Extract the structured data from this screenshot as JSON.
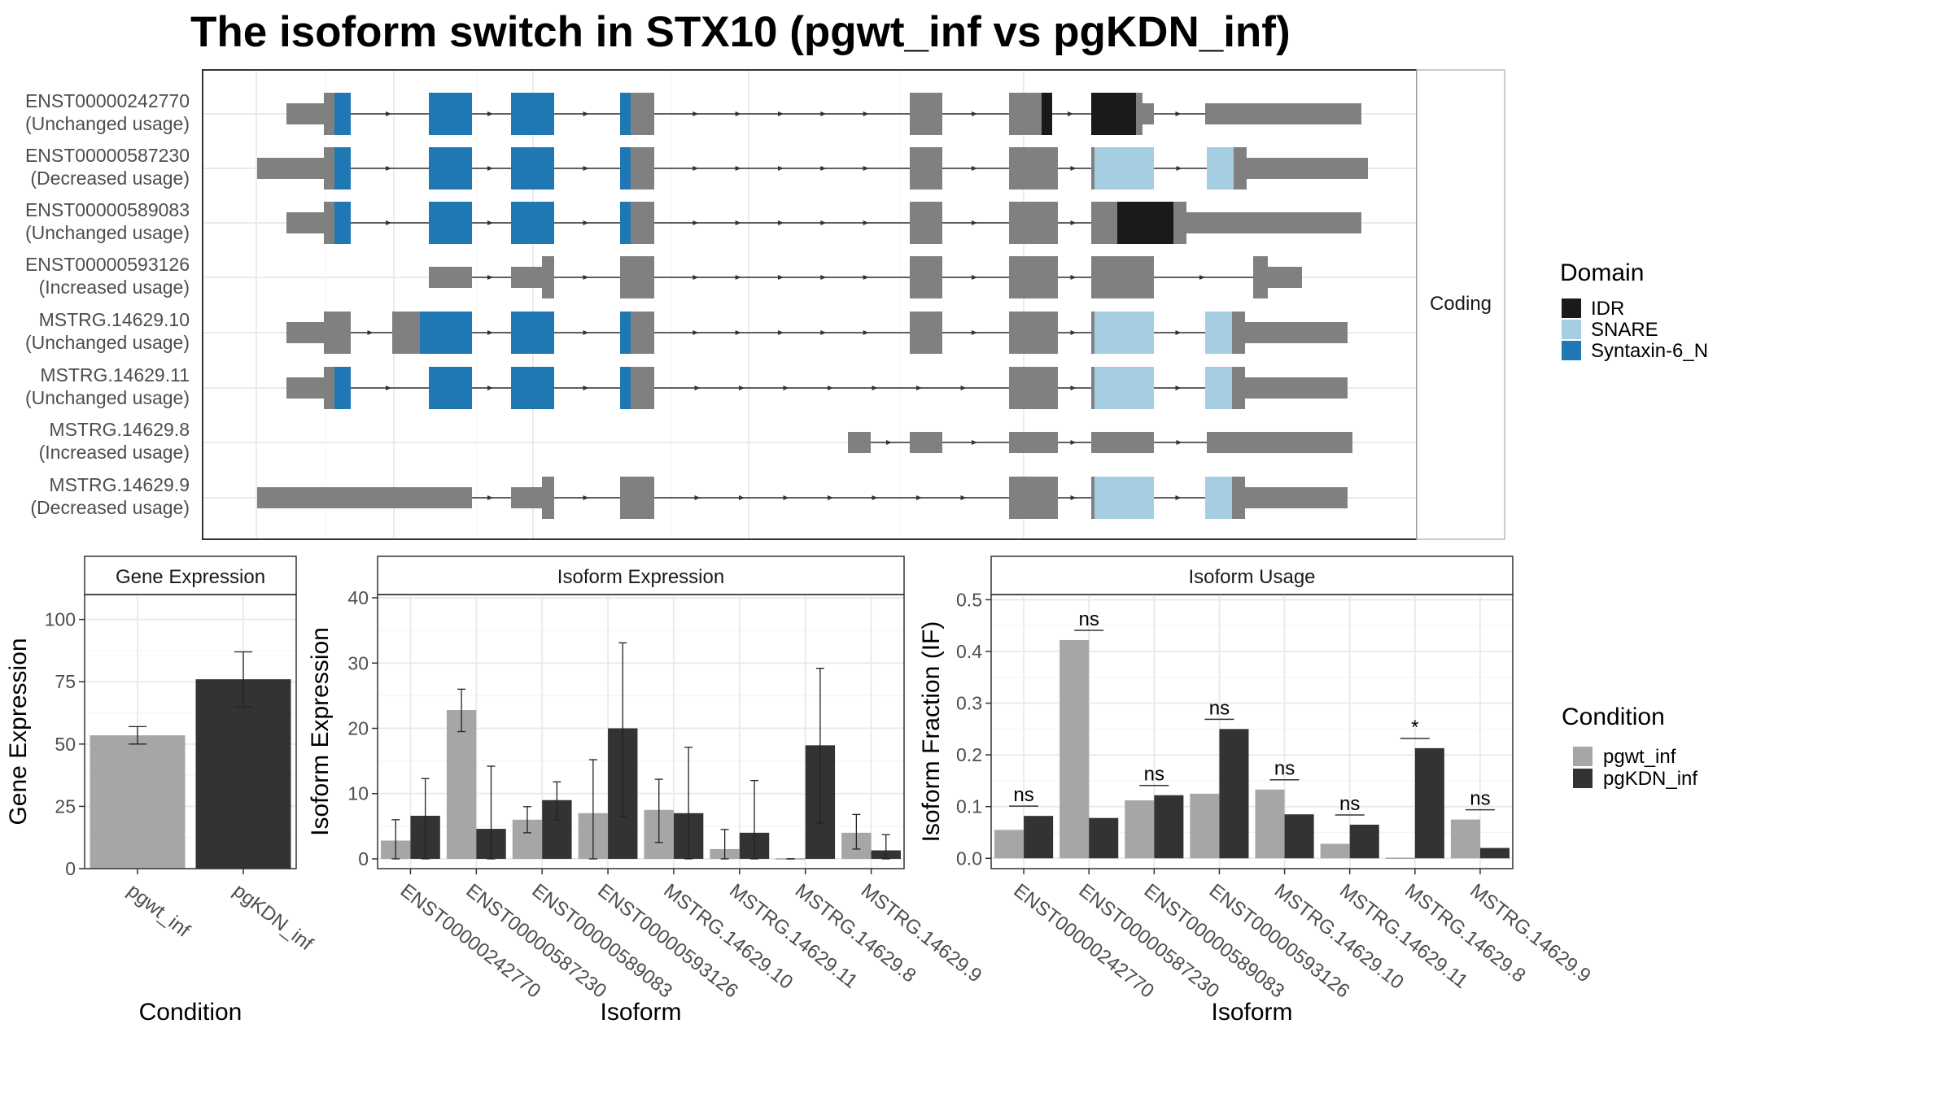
{
  "title": "The isoform switch in STX10 (pgwt_inf vs pgKDN_inf)",
  "colors": {
    "intron_grey": "#808080",
    "IDR": "#1a1a1a",
    "SNARE": "#a6cee3",
    "Syntaxin-6_N": "#1f78b4",
    "pgwt_inf": "#a6a6a6",
    "pgKDN_inf": "#333333"
  },
  "structure": {
    "facet_label": "Coding",
    "legend": {
      "title": "Domain",
      "items": [
        {
          "name": "IDR",
          "color_key": "IDR"
        },
        {
          "name": "SNARE",
          "color_key": "SNARE"
        },
        {
          "name": "Syntaxin-6_N",
          "color_key": "Syntaxin-6_N"
        }
      ]
    },
    "isoforms": [
      {
        "id": "ENST00000242770",
        "usage": "(Unchanged usage)"
      },
      {
        "id": "ENST00000587230",
        "usage": "(Decreased usage)"
      },
      {
        "id": "ENST00000589083",
        "usage": "(Unchanged usage)"
      },
      {
        "id": "ENST00000593126",
        "usage": "(Increased usage)"
      },
      {
        "id": "MSTRG.14629.10",
        "usage": "(Unchanged usage)"
      },
      {
        "id": "MSTRG.14629.11",
        "usage": "(Unchanged usage)"
      },
      {
        "id": "MSTRG.14629.8",
        "usage": "(Increased usage)"
      },
      {
        "id": "MSTRG.14629.9",
        "usage": "(Decreased usage)"
      }
    ]
  },
  "chart_data": [
    {
      "type": "bar",
      "panel_title": "Gene Expression",
      "categories": [
        "pgwt_inf",
        "pgKDN_inf"
      ],
      "values": [
        53.5,
        76
      ],
      "error_low": [
        50,
        65
      ],
      "error_high": [
        57,
        87
      ],
      "xlabel": "Condition",
      "ylabel": "Gene Expression",
      "ylim": [
        0,
        110
      ],
      "yticks": [
        0,
        25,
        50,
        75,
        100
      ],
      "grid": true
    },
    {
      "type": "bar",
      "panel_title": "Isoform Expression",
      "categories": [
        "ENST00000242770",
        "ENST00000587230",
        "ENST00000589083",
        "ENST00000593126",
        "MSTRG.14629.10",
        "MSTRG.14629.11",
        "MSTRG.14629.8",
        "MSTRG.14629.9"
      ],
      "series": [
        {
          "name": "pgwt_inf",
          "values": [
            2.8,
            22.8,
            6,
            7,
            7.5,
            1.5,
            0,
            4
          ],
          "error_low": [
            0,
            19.5,
            4,
            0,
            2.5,
            0,
            0,
            1.5
          ],
          "error_high": [
            6,
            26,
            8,
            15.2,
            12.2,
            4.5,
            0,
            6.8
          ]
        },
        {
          "name": "pgKDN_inf",
          "values": [
            6.6,
            4.6,
            9,
            20,
            7,
            4,
            17.4,
            1.3
          ],
          "error_low": [
            0,
            0,
            6,
            6.5,
            0,
            0,
            5.5,
            0
          ],
          "error_high": [
            12.3,
            14.2,
            11.8,
            33.1,
            17.1,
            12,
            29.2,
            3.7
          ]
        }
      ],
      "xlabel": "Isoform",
      "ylabel": "Isoform Expression",
      "ylim": [
        -1.5,
        40.5
      ],
      "yticks": [
        0,
        10,
        20,
        30,
        40
      ],
      "grid": true
    },
    {
      "type": "bar",
      "panel_title": "Isoform Usage",
      "categories": [
        "ENST00000242770",
        "ENST00000587230",
        "ENST00000589083",
        "ENST00000593126",
        "MSTRG.14629.10",
        "MSTRG.14629.11",
        "MSTRG.14629.8",
        "MSTRG.14629.9"
      ],
      "series": [
        {
          "name": "pgwt_inf",
          "values": [
            0.055,
            0.422,
            0.112,
            0.125,
            0.133,
            0.028,
            0,
            0.075
          ]
        },
        {
          "name": "pgKDN_inf",
          "values": [
            0.082,
            0.078,
            0.122,
            0.25,
            0.085,
            0.065,
            0.213,
            0.02
          ]
        }
      ],
      "significance": [
        "ns",
        "ns",
        "ns",
        "ns",
        "ns",
        "ns",
        "*",
        "ns"
      ],
      "xlabel": "Isoform",
      "ylabel": "Isoform Fraction (IF)",
      "ylim": [
        -0.02,
        0.51
      ],
      "yticks": [
        0.0,
        0.1,
        0.2,
        0.3,
        0.4,
        0.5
      ],
      "ytick_labels": [
        "0.0",
        "0.1",
        "0.2",
        "0.3",
        "0.4",
        "0.5"
      ],
      "grid": true
    }
  ],
  "condition_legend": {
    "title": "Condition",
    "items": [
      "pgwt_inf",
      "pgKDN_inf"
    ]
  }
}
